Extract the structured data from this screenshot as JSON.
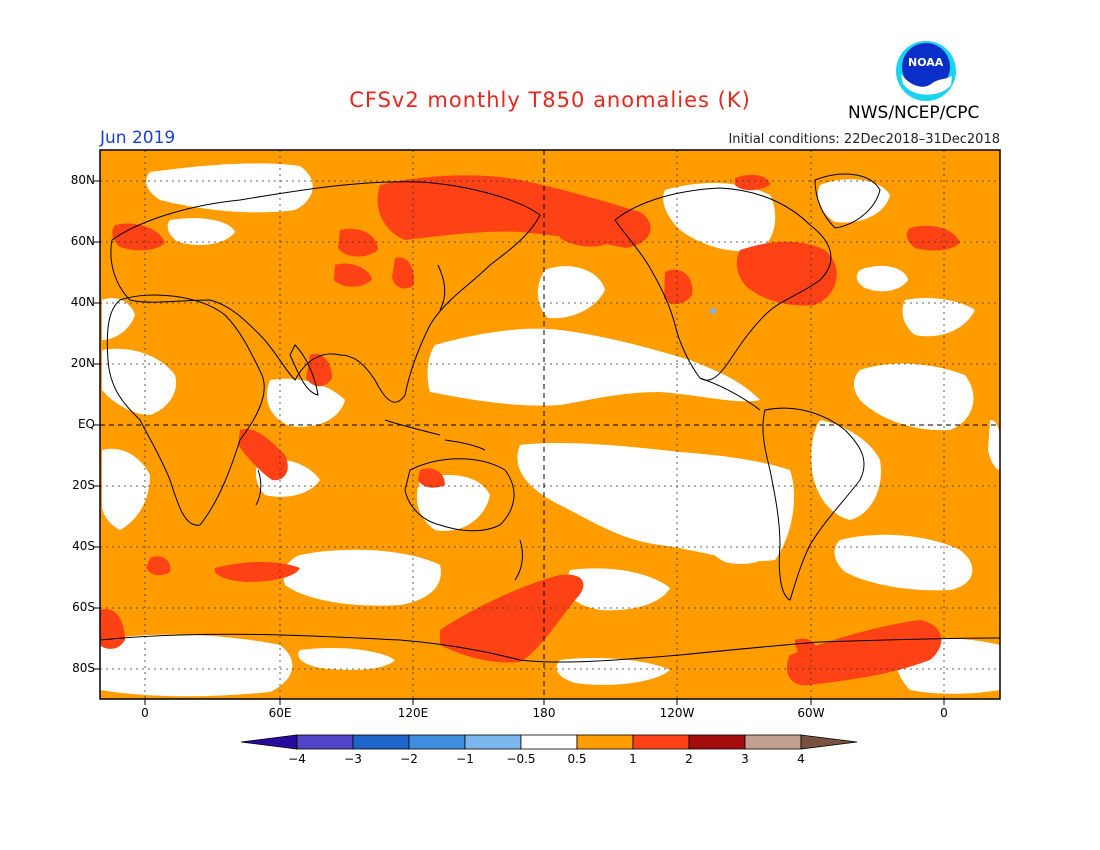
{
  "header": {
    "title": "CFSv2 monthly T850 anomalies (K)",
    "title_color": "#e8261c",
    "month": "Jun 2019",
    "month_color": "#1a3fd6",
    "initial_conditions": "Initial conditions: 22Dec2018–31Dec2018",
    "agency": "NWS/NCEP/CPC",
    "logo_text": "NOAA"
  },
  "map": {
    "projection": "equirectangular",
    "center_longitude": 180,
    "background_anomaly_class": "0.5 to 1",
    "lat_labels": [
      "80N",
      "60N",
      "40N",
      "20N",
      "EQ",
      "20S",
      "40S",
      "60S",
      "80S"
    ],
    "lon_labels": [
      "0",
      "60E",
      "120E",
      "180",
      "120W",
      "60W",
      "0"
    ],
    "gridlines": "dotted",
    "reference_lines": [
      "Equator",
      "180"
    ],
    "notable_features": [
      "Widespread warm anomalies (0.5 to 1 K) over most of the globe",
      "Near-zero anomalies (-0.5 to 0.5 K) over the tropical and subtropical Pacific",
      "Stronger warm anomalies (1 to 2 K) over Siberia, northeastern Canada, Alaska and parts of the Southern Ocean near Antarctica"
    ]
  },
  "colorbar": {
    "labels": [
      "−4",
      "−3",
      "−2",
      "−1",
      "−0.5",
      "0.5",
      "1",
      "2",
      "3",
      "4"
    ],
    "colors": [
      "#2a0a9e",
      "#5044c8",
      "#1f66cc",
      "#3f8ee0",
      "#7cb6ee",
      "#ffffff",
      "#ff9c00",
      "#ff4216",
      "#a30d0d",
      "#c4a090",
      "#7a5040"
    ],
    "units": "K"
  }
}
